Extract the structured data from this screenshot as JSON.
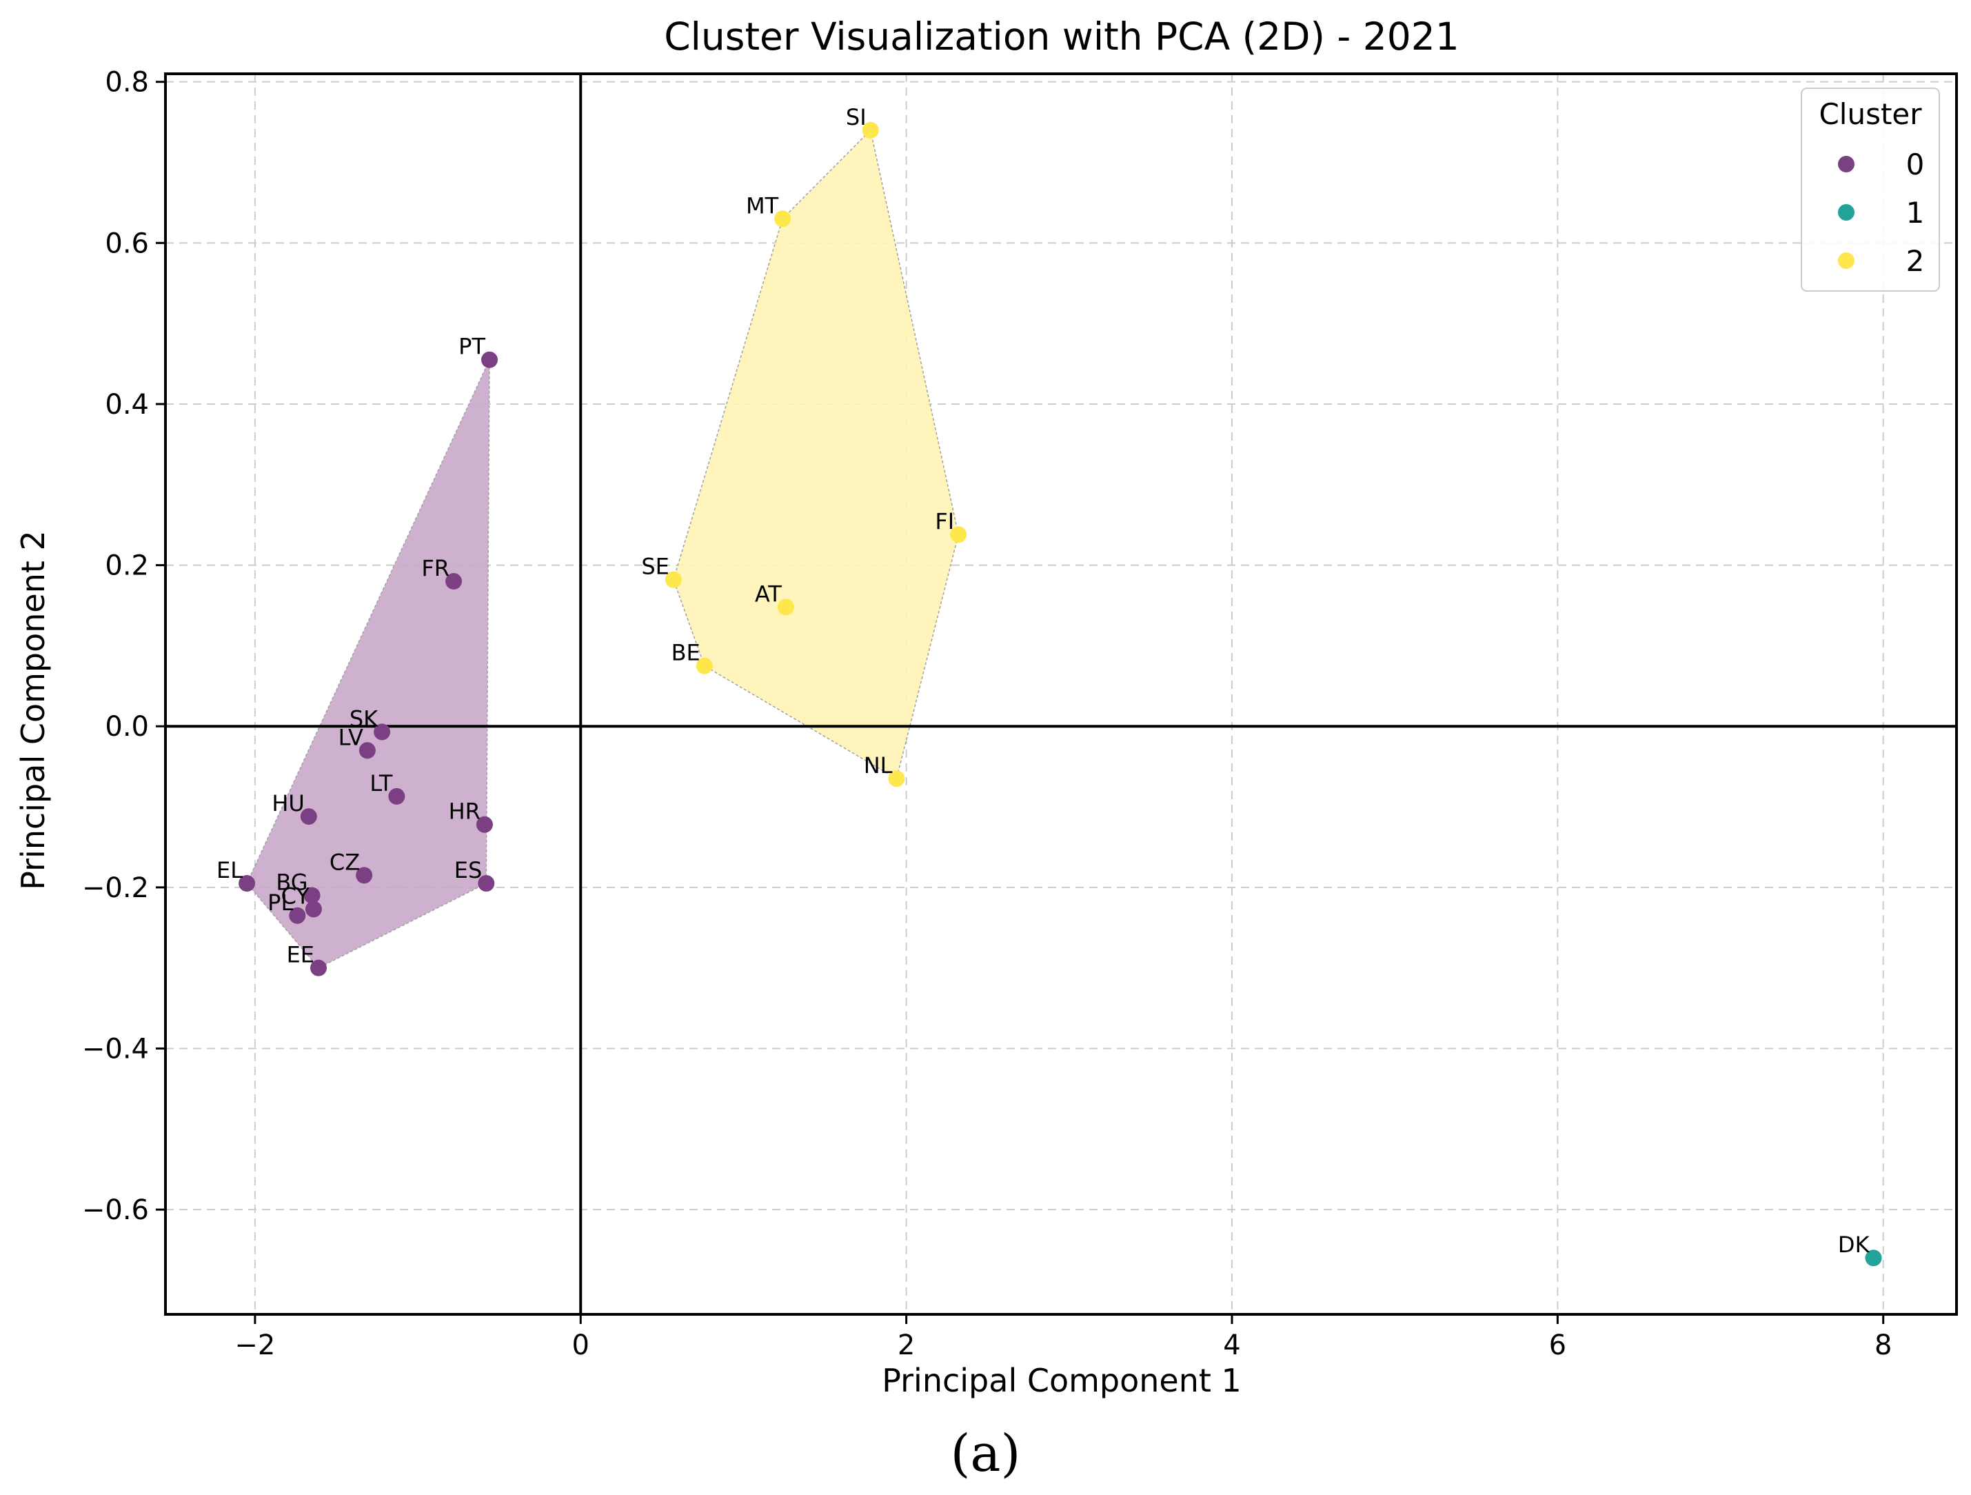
{
  "chart_data": {
    "type": "scatter",
    "title": "Cluster Visualization with PCA (2D) - 2021",
    "xlabel": "Principal Component 1",
    "ylabel": "Principal Component 2",
    "xlim": [
      -2.55,
      8.45
    ],
    "ylim": [
      -0.73,
      0.81
    ],
    "xticks": [
      -2,
      0,
      2,
      4,
      6,
      8
    ],
    "yticks": [
      -0.6,
      -0.4,
      -0.2,
      0.0,
      0.2,
      0.4,
      0.6,
      0.8
    ],
    "xtick_labels": [
      "−2",
      "0",
      "2",
      "4",
      "6",
      "8"
    ],
    "ytick_labels": [
      "−0.6",
      "−0.4",
      "−0.2",
      "0.0",
      "0.2",
      "0.4",
      "0.6",
      "0.8"
    ],
    "grid": true,
    "legend": {
      "title": "Cluster",
      "position": "top-right",
      "entries": [
        "0",
        "1",
        "2"
      ]
    },
    "colors": {
      "0": "#7b3f84",
      "1": "#22a39a",
      "2": "#fde74c"
    },
    "hull_colors": {
      "0": "#c9a9c9",
      "2": "#fff4b5"
    },
    "points": [
      {
        "label": "PT",
        "x": -0.56,
        "y": 0.455,
        "cluster": 0
      },
      {
        "label": "FR",
        "x": -0.78,
        "y": 0.18,
        "cluster": 0
      },
      {
        "label": "SK",
        "x": -1.22,
        "y": -0.007,
        "cluster": 0
      },
      {
        "label": "LV",
        "x": -1.31,
        "y": -0.03,
        "cluster": 0
      },
      {
        "label": "LT",
        "x": -1.13,
        "y": -0.087,
        "cluster": 0
      },
      {
        "label": "HU",
        "x": -1.67,
        "y": -0.112,
        "cluster": 0
      },
      {
        "label": "HR",
        "x": -0.59,
        "y": -0.122,
        "cluster": 0
      },
      {
        "label": "CZ",
        "x": -1.33,
        "y": -0.185,
        "cluster": 0
      },
      {
        "label": "ES",
        "x": -0.58,
        "y": -0.195,
        "cluster": 0
      },
      {
        "label": "EL",
        "x": -2.05,
        "y": -0.195,
        "cluster": 0
      },
      {
        "label": "BG",
        "x": -1.65,
        "y": -0.21,
        "cluster": 0
      },
      {
        "label": "CY",
        "x": -1.64,
        "y": -0.227,
        "cluster": 0
      },
      {
        "label": "PL",
        "x": -1.74,
        "y": -0.235,
        "cluster": 0
      },
      {
        "label": "EE",
        "x": -1.61,
        "y": -0.3,
        "cluster": 0
      },
      {
        "label": "SI",
        "x": 1.78,
        "y": 0.74,
        "cluster": 2
      },
      {
        "label": "MT",
        "x": 1.24,
        "y": 0.63,
        "cluster": 2
      },
      {
        "label": "FI",
        "x": 2.32,
        "y": 0.238,
        "cluster": 2
      },
      {
        "label": "SE",
        "x": 0.57,
        "y": 0.182,
        "cluster": 2
      },
      {
        "label": "AT",
        "x": 1.26,
        "y": 0.148,
        "cluster": 2
      },
      {
        "label": "BE",
        "x": 0.76,
        "y": 0.075,
        "cluster": 2
      },
      {
        "label": "NL",
        "x": 1.94,
        "y": -0.065,
        "cluster": 2
      },
      {
        "label": "DK",
        "x": 7.94,
        "y": -0.66,
        "cluster": 1
      }
    ]
  },
  "caption": "(a)"
}
